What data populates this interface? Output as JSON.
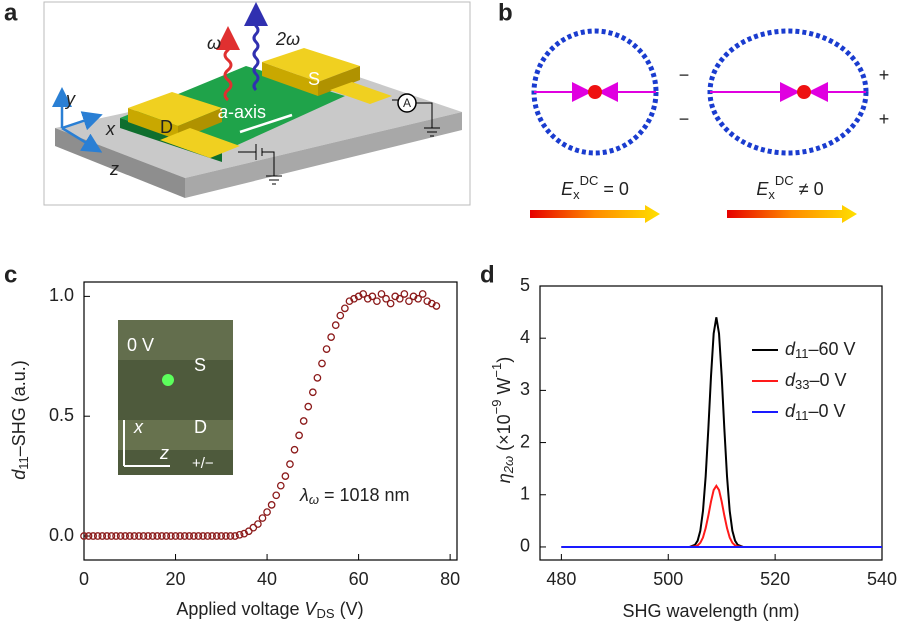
{
  "diagram_a": {
    "letter": "a",
    "omega": "ω",
    "two_omega": "2ω",
    "source": "S",
    "drain": "D",
    "axis_label": [
      "a",
      "-axis"
    ],
    "ammeter": "A",
    "x": "x",
    "y": "y",
    "z": "z"
  },
  "diagram_b": {
    "letter": "b",
    "signs": [
      "−",
      "−",
      "+",
      "+"
    ],
    "captions": [
      [
        "E",
        "x",
        "DC",
        " = 0"
      ],
      [
        "E",
        "x",
        "DC",
        " ≠ 0"
      ]
    ]
  },
  "chart_data": [
    {
      "type": "scatter",
      "letter": "c",
      "xlabel": [
        "Applied voltage ",
        "V",
        "DS",
        " (V)"
      ],
      "ylabel": [
        "d",
        "11",
        "–SHG (a.u.)"
      ],
      "x": [
        0,
        1,
        2,
        3,
        4,
        5,
        6,
        7,
        8,
        9,
        10,
        11,
        12,
        13,
        14,
        15,
        16,
        17,
        18,
        19,
        20,
        21,
        22,
        23,
        24,
        25,
        26,
        27,
        28,
        29,
        30,
        31,
        32,
        33,
        34,
        35,
        36,
        37,
        38,
        39,
        40,
        41,
        42,
        43,
        44,
        45,
        46,
        47,
        48,
        49,
        50,
        51,
        52,
        53,
        54,
        55,
        56,
        57,
        58,
        59,
        60,
        61,
        62,
        63,
        64,
        65,
        66,
        67,
        68,
        69,
        70,
        71,
        72,
        73,
        74,
        75,
        76,
        77
      ],
      "values": [
        0,
        0,
        0,
        0,
        0,
        0,
        0,
        0,
        0,
        0,
        0,
        0,
        0,
        0,
        0,
        0,
        0,
        0,
        0,
        0,
        0,
        0,
        0,
        0,
        0,
        0,
        0,
        0,
        0,
        0,
        0,
        0,
        0,
        0,
        0.005,
        0.01,
        0.02,
        0.035,
        0.05,
        0.075,
        0.1,
        0.13,
        0.17,
        0.21,
        0.25,
        0.3,
        0.36,
        0.42,
        0.48,
        0.54,
        0.6,
        0.66,
        0.72,
        0.78,
        0.83,
        0.88,
        0.92,
        0.95,
        0.98,
        0.99,
        1.0,
        1.01,
        0.99,
        1.0,
        0.98,
        1.01,
        0.99,
        0.97,
        1.0,
        0.99,
        1.01,
        0.98,
        1.0,
        0.99,
        1.01,
        0.98,
        0.97,
        0.96
      ],
      "color": "#8b1a1a",
      "xlim": [
        0,
        81.5
      ],
      "ylim": [
        -0.1,
        1.06
      ],
      "xticks": [
        0,
        20,
        40,
        60,
        80
      ],
      "yticks": [
        {
          "value": 0,
          "label": "0.0"
        },
        0.5,
        {
          "value": 1,
          "label": "1.0"
        }
      ],
      "annotation": [
        "λ",
        "ω",
        " = 1018 nm"
      ],
      "inset": {
        "voltage": "0 V",
        "source": "S",
        "drain": "D",
        "x": "x",
        "z": "z",
        "polarity": "+/−"
      }
    },
    {
      "type": "line",
      "letter": "d",
      "xlabel": "SHG wavelength (nm)",
      "ylabel": [
        "η",
        "2ω",
        " (×10",
        "−9",
        " W",
        "−1",
        ")"
      ],
      "x": [
        480,
        490,
        500,
        504,
        505,
        505.5,
        506,
        506.5,
        507,
        507.5,
        508,
        508.5,
        509,
        509.5,
        510,
        510.5,
        511,
        511.5,
        512,
        512.5,
        513,
        514,
        520,
        530,
        540
      ],
      "series": [
        {
          "name": "d11–60 V",
          "color": "#000000",
          "values": [
            0,
            0,
            0,
            0,
            0.04,
            0.12,
            0.31,
            0.69,
            1.35,
            2.26,
            3.27,
            4.09,
            4.4,
            4.09,
            3.27,
            2.26,
            1.35,
            0.69,
            0.31,
            0.12,
            0.04,
            0,
            0,
            0,
            0
          ]
        },
        {
          "name": "d33–0 V",
          "color": "#ff1a1a",
          "values": [
            0,
            0,
            0,
            0,
            0.01,
            0.03,
            0.08,
            0.18,
            0.36,
            0.6,
            0.87,
            1.09,
            1.17,
            1.09,
            0.87,
            0.6,
            0.36,
            0.18,
            0.08,
            0.03,
            0.01,
            0,
            0,
            0,
            0
          ]
        },
        {
          "name": "d11–0 V",
          "color": "#1a1aff",
          "values": [
            0,
            0,
            0,
            0,
            0,
            0,
            0,
            0,
            0,
            0,
            0,
            0,
            0,
            0,
            0,
            0,
            0,
            0,
            0,
            0,
            0,
            0,
            0,
            0,
            0
          ]
        }
      ],
      "xlim": [
        476,
        540
      ],
      "ylim": [
        -0.25,
        5
      ],
      "xticks": [
        480,
        500,
        520,
        540
      ],
      "yticks": [
        0,
        1,
        2,
        3,
        4,
        5
      ]
    }
  ]
}
